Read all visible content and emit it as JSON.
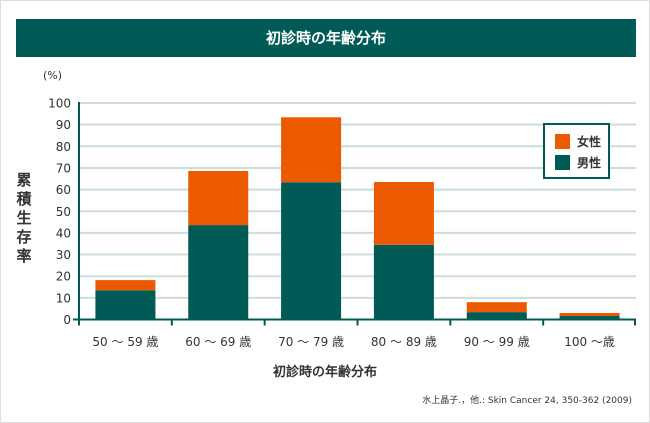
{
  "chart_data": {
    "type": "bar",
    "stacked": true,
    "title": "初診時の年齢分布",
    "xlabel": "初診時の年齢分布",
    "ylabel": "累積生存率",
    "yunit": "(%)",
    "ylim": [
      0,
      100
    ],
    "yticks": [
      0,
      10,
      20,
      30,
      40,
      50,
      60,
      70,
      80,
      90,
      100
    ],
    "grid": true,
    "legend_position": "top-right",
    "categories": [
      "50 ～ 59 歳",
      "60 ～ 69 歳",
      "70 ～ 79 歳",
      "80 ～ 89 歳",
      "90 ～ 99 歳",
      "100 ～歳"
    ],
    "series": [
      {
        "name": "男性",
        "color": "#005a55",
        "values": [
          13.5,
          43.6,
          63.4,
          34.5,
          3.4,
          1.6
        ]
      },
      {
        "name": "女性",
        "color": "#eb5a00",
        "values": [
          4.7,
          25.0,
          30.0,
          29.0,
          4.6,
          1.4
        ]
      }
    ],
    "source": "水上晶子.，他.: Skin Cancer 24, 350-362 (2009)"
  },
  "colors": {
    "header": "#005a55",
    "grid": "#cddddc",
    "axis": "#005a55"
  }
}
